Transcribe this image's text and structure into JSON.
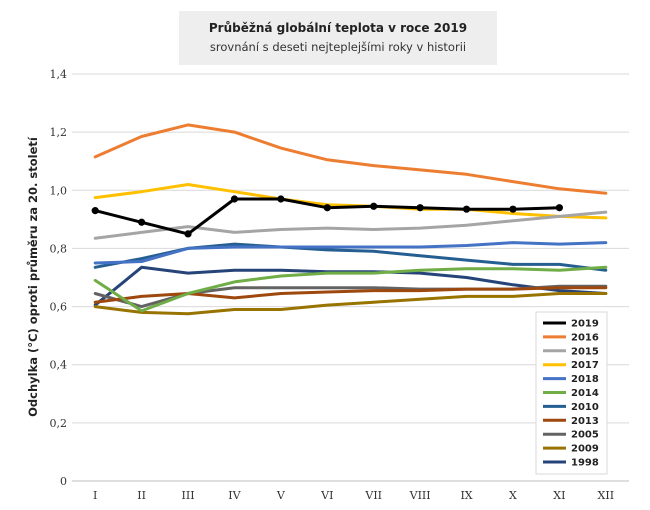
{
  "chart_data": {
    "type": "line",
    "title": "Průběžná globální teplota v roce 2019",
    "subtitle": "srovnání s deseti nejteplejšími roky v historii",
    "xlabel": "",
    "ylabel": "Odchylka (°C) oproti průměru za 20. století",
    "ylim": [
      0,
      1.4
    ],
    "yticks": [
      "0",
      "0,2",
      "0,4",
      "0,6",
      "0,8",
      "1,0",
      "1,2",
      "1,4"
    ],
    "categories": [
      "I",
      "II",
      "III",
      "IV",
      "V",
      "VI",
      "VII",
      "VIII",
      "IX",
      "X",
      "XI",
      "XII"
    ],
    "grid": true,
    "legend_position": "bottom-right",
    "series": [
      {
        "name": "2019",
        "color": "#000000",
        "markers": true,
        "values": [
          0.93,
          0.89,
          0.85,
          0.97,
          0.97,
          0.94,
          0.945,
          0.94,
          0.935,
          0.935,
          0.94,
          null
        ]
      },
      {
        "name": "2016",
        "color": "#ed7d31",
        "values": [
          1.115,
          1.185,
          1.225,
          1.2,
          1.145,
          1.105,
          1.085,
          1.07,
          1.055,
          1.03,
          1.005,
          0.99
        ]
      },
      {
        "name": "2015",
        "color": "#a5a5a5",
        "values": [
          0.835,
          0.855,
          0.875,
          0.855,
          0.865,
          0.87,
          0.865,
          0.87,
          0.88,
          0.895,
          0.91,
          0.925
        ]
      },
      {
        "name": "2017",
        "color": "#ffc000",
        "values": [
          0.975,
          0.995,
          1.02,
          0.995,
          0.97,
          0.95,
          0.945,
          0.935,
          0.935,
          0.92,
          0.91,
          0.905
        ]
      },
      {
        "name": "2018",
        "color": "#4472c4",
        "values": [
          0.75,
          0.755,
          0.8,
          0.805,
          0.805,
          0.805,
          0.805,
          0.805,
          0.81,
          0.82,
          0.815,
          0.82
        ]
      },
      {
        "name": "2014",
        "color": "#70ad47",
        "values": [
          0.69,
          0.585,
          0.645,
          0.685,
          0.705,
          0.715,
          0.715,
          0.725,
          0.73,
          0.73,
          0.725,
          0.735
        ]
      },
      {
        "name": "2010",
        "color": "#255e91",
        "values": [
          0.735,
          0.765,
          0.8,
          0.815,
          0.805,
          0.795,
          0.79,
          0.775,
          0.76,
          0.745,
          0.745,
          0.725
        ]
      },
      {
        "name": "2013",
        "color": "#9e480e",
        "values": [
          0.615,
          0.635,
          0.645,
          0.63,
          0.645,
          0.65,
          0.655,
          0.655,
          0.66,
          0.66,
          0.665,
          0.665
        ]
      },
      {
        "name": "2005",
        "color": "#636363",
        "values": [
          0.645,
          0.6,
          0.645,
          0.665,
          0.665,
          0.665,
          0.665,
          0.66,
          0.66,
          0.66,
          0.67,
          0.67
        ]
      },
      {
        "name": "2009",
        "color": "#997300",
        "values": [
          0.6,
          0.58,
          0.575,
          0.59,
          0.59,
          0.605,
          0.615,
          0.625,
          0.635,
          0.635,
          0.645,
          0.645
        ]
      },
      {
        "name": "1998",
        "color": "#264478",
        "values": [
          0.605,
          0.735,
          0.715,
          0.725,
          0.725,
          0.72,
          0.72,
          0.715,
          0.7,
          0.675,
          0.655,
          0.645
        ]
      }
    ]
  }
}
